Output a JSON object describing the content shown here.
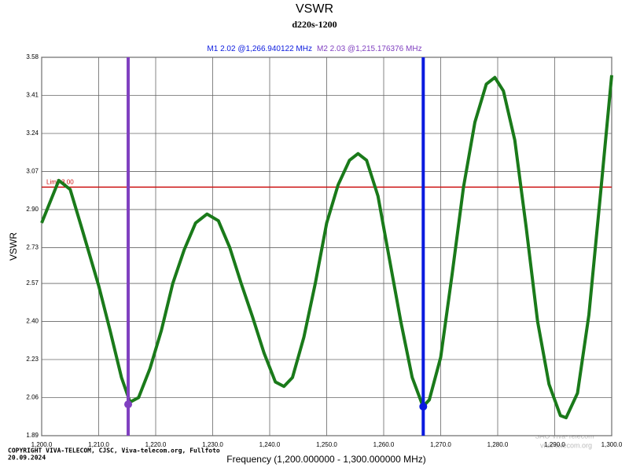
{
  "chart_data": {
    "type": "line",
    "title": "VSWR",
    "subtitle": "d220s-1200",
    "x_label": "Frequency (1,200.000000 - 1,300.000000 MHz)",
    "y_label": "VSWR",
    "copyright": "COPYRIGHT VIVA-TELECOM, CJSC, Viva-telecom.org, Fullfoto",
    "date": "20.09.2024",
    "watermark": [
      "SAO Viva-Telecom",
      "viva-telecom.org"
    ],
    "color": "#1a7a1a",
    "grid": true,
    "xlim": [
      1200,
      1300
    ],
    "ylim": [
      1.89,
      3.58
    ],
    "xticks": [
      {
        "value": 1200,
        "label": "1,200.0"
      },
      {
        "value": 1210,
        "label": "1,210.0"
      },
      {
        "value": 1220,
        "label": "1,220.0"
      },
      {
        "value": 1230,
        "label": "1,230.0"
      },
      {
        "value": 1240,
        "label": "1,240.0"
      },
      {
        "value": 1250,
        "label": "1,250.0"
      },
      {
        "value": 1260,
        "label": "1,260.0"
      },
      {
        "value": 1270,
        "label": "1,270.0"
      },
      {
        "value": 1280,
        "label": "1,280.0"
      },
      {
        "value": 1290,
        "label": "1,290.0"
      },
      {
        "value": 1300,
        "label": "1,300.0"
      }
    ],
    "yticks": [
      1.89,
      2.06,
      2.23,
      {
        "value": 2.4,
        "label": "2.40"
      },
      2.57,
      2.73,
      {
        "value": 2.9,
        "label": "2.90"
      },
      3.07,
      3.24,
      3.41,
      3.58
    ],
    "x": [
      1200,
      1203,
      1205,
      1207,
      1210,
      1212,
      1214,
      1215.5,
      1217,
      1219,
      1221,
      1223,
      1225,
      1227,
      1229,
      1231,
      1233,
      1235,
      1237,
      1239,
      1241,
      1242.5,
      1244,
      1246,
      1248,
      1250,
      1252,
      1254,
      1255.5,
      1257,
      1259,
      1261,
      1263,
      1265,
      1266.9,
      1268,
      1270,
      1272,
      1274,
      1276,
      1278,
      1279.5,
      1281,
      1283,
      1285,
      1287,
      1289,
      1291,
      1292,
      1294,
      1296,
      1298,
      1300
    ],
    "values": [
      2.84,
      3.03,
      2.99,
      2.82,
      2.56,
      2.36,
      2.15,
      2.04,
      2.06,
      2.19,
      2.36,
      2.57,
      2.72,
      2.84,
      2.88,
      2.85,
      2.73,
      2.57,
      2.42,
      2.26,
      2.13,
      2.11,
      2.15,
      2.33,
      2.57,
      2.84,
      3.01,
      3.12,
      3.15,
      3.12,
      2.96,
      2.68,
      2.4,
      2.15,
      2.02,
      2.05,
      2.24,
      2.61,
      3.0,
      3.29,
      3.46,
      3.49,
      3.43,
      3.21,
      2.82,
      2.4,
      2.12,
      1.98,
      1.97,
      2.08,
      2.43,
      2.96,
      3.5
    ],
    "limit": {
      "label": "Limit 3.00",
      "value": 3.0,
      "color": "#cc1111"
    },
    "markers": [
      {
        "label": "M1 2.02 @1,266.940122 MHz",
        "x": 1266.940122,
        "value": 2.02,
        "color": "#0a1adf"
      },
      {
        "label": "M2 2.03 @1,215.176376 MHz",
        "x": 1215.176376,
        "value": 2.03,
        "color": "#8040c0"
      }
    ]
  }
}
